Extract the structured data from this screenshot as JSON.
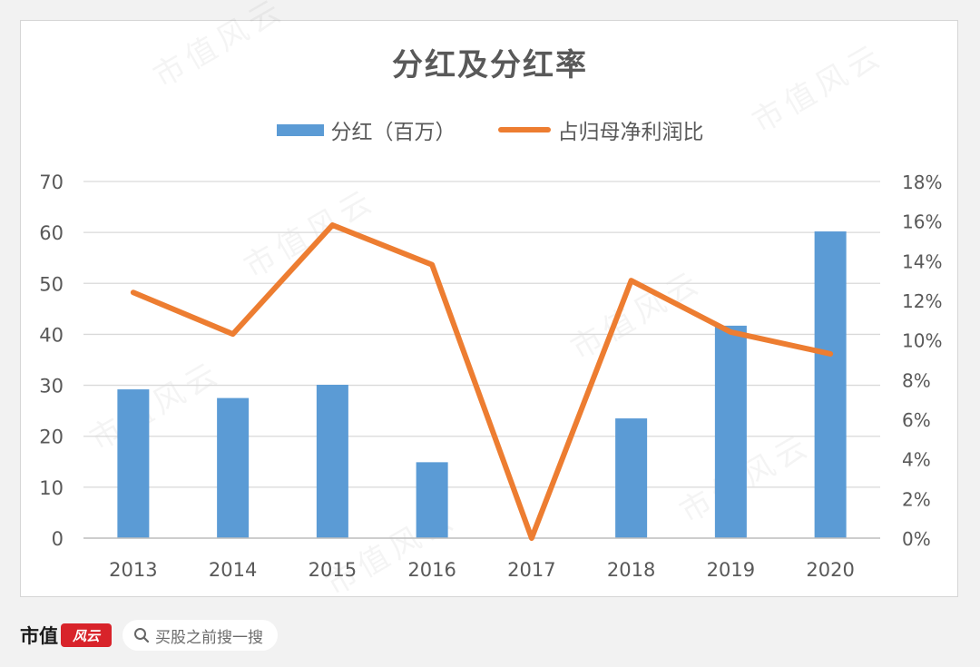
{
  "chart_data": {
    "type": "bar+line",
    "title": "分红及分红率",
    "categories": [
      "2013",
      "2014",
      "2015",
      "2016",
      "2017",
      "2018",
      "2019",
      "2020"
    ],
    "series": [
      {
        "name": "分红（百万）",
        "type": "bar",
        "axis": "left",
        "color": "#5b9bd5",
        "values": [
          29.2,
          27.5,
          30.1,
          14.9,
          0,
          23.5,
          41.7,
          60.2
        ]
      },
      {
        "name": "占归母净利润比",
        "type": "line",
        "axis": "right",
        "color": "#ed7d31",
        "values": [
          12.4,
          10.3,
          15.8,
          13.8,
          0.0,
          13.0,
          10.4,
          9.3
        ]
      }
    ],
    "y_left": {
      "min": 0,
      "max": 70,
      "step": 10,
      "tick_labels": [
        "0",
        "10",
        "20",
        "30",
        "40",
        "50",
        "60",
        "70"
      ]
    },
    "y_right": {
      "min": 0,
      "max": 18,
      "step": 2,
      "unit": "%",
      "tick_labels": [
        "0%",
        "2%",
        "4%",
        "6%",
        "8%",
        "10%",
        "12%",
        "14%",
        "16%",
        "18%"
      ]
    },
    "grid": true,
    "legend_position": "top"
  },
  "footer": {
    "brand_name": "市值",
    "brand_seal": "风云",
    "search_text": "买股之前搜一搜"
  },
  "watermark_text": "市值风云"
}
